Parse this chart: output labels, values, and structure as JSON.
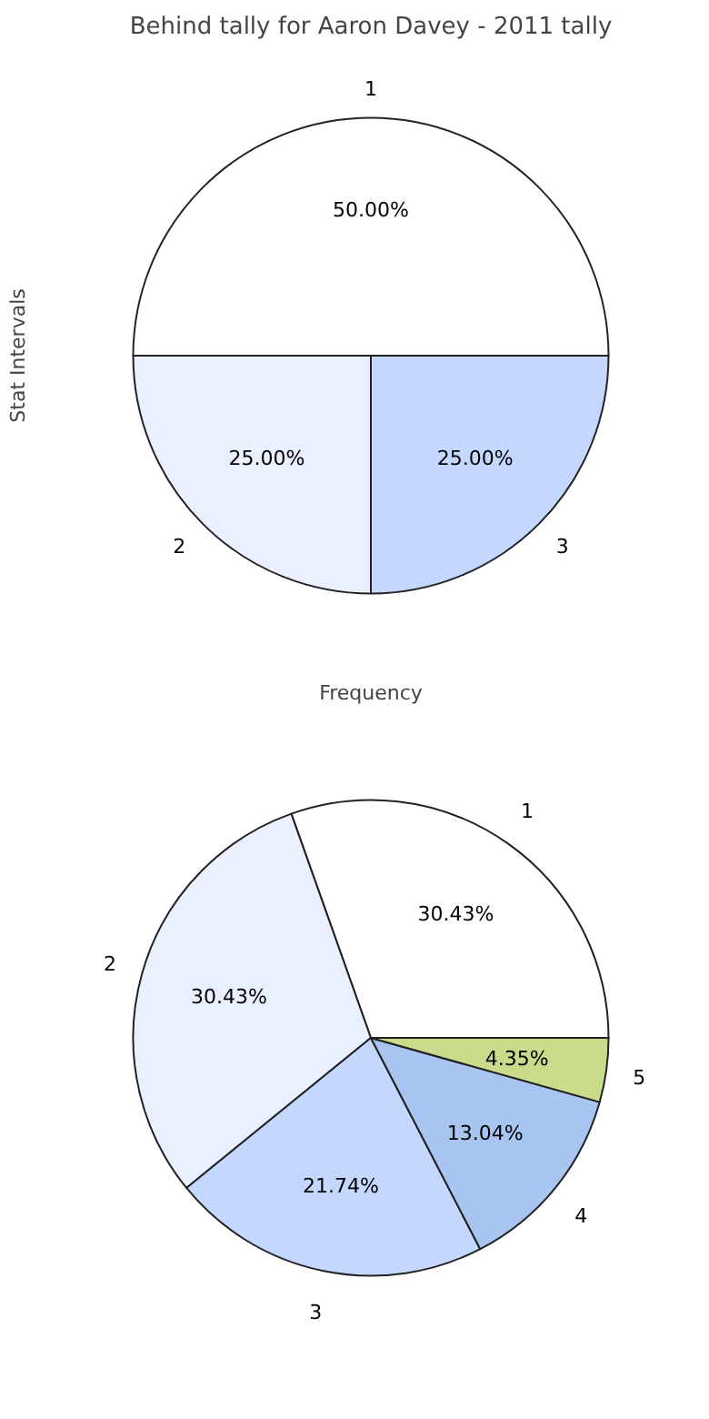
{
  "chart_data": [
    {
      "type": "pie",
      "title": "Behind tally for Aaron Davey - 2011 tally",
      "xlabel": "Frequency",
      "ylabel": "Stat Intervals",
      "categories": [
        "1",
        "2",
        "3"
      ],
      "values": [
        50.0,
        25.0,
        25.0
      ],
      "colors": [
        "#ffffff",
        "#eaf0ff",
        "#c4d8ff"
      ],
      "value_labels": [
        "50.00%",
        "25.00%",
        "25.00%"
      ]
    },
    {
      "type": "pie",
      "categories": [
        "1",
        "2",
        "3",
        "4",
        "5"
      ],
      "values": [
        30.43,
        30.43,
        21.74,
        13.04,
        4.35
      ],
      "colors": [
        "#ffffff",
        "#eaf0ff",
        "#c4d8ff",
        "#a8c4f0",
        "#c8dc8c"
      ],
      "value_labels": [
        "30.43%",
        "30.43%",
        "21.74%",
        "13.04%",
        "4.35%"
      ]
    }
  ]
}
